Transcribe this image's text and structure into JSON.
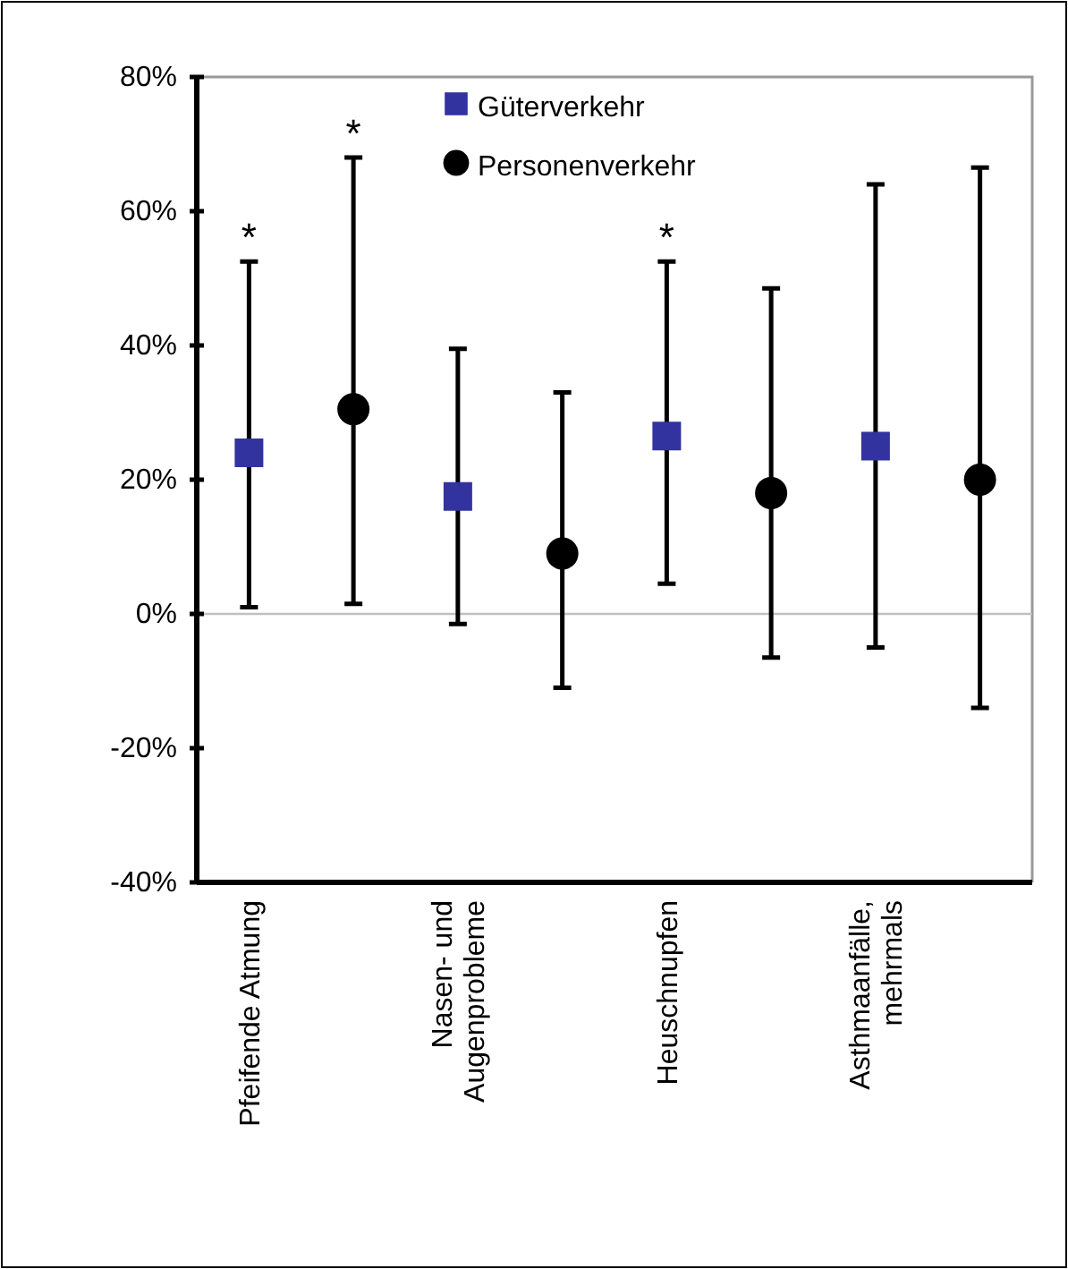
{
  "chart_data": {
    "type": "scatter",
    "categories": [
      "Pfeifende Atmung",
      null,
      "Nasen- und Augenprobleme",
      null,
      "Heuschnupfen",
      null,
      "Asthmaanfälle, mehrmals",
      null
    ],
    "series": [
      {
        "name": "Güterverkehr",
        "color": "#3333a0",
        "marker": "square",
        "values": [
          24,
          null,
          17.5,
          null,
          26.5,
          null,
          25,
          null
        ],
        "errors": [
          [
            1,
            52.5
          ],
          null,
          [
            -1.5,
            39.5
          ],
          null,
          [
            4.5,
            52.5
          ],
          null,
          [
            -5,
            64
          ],
          null
        ]
      },
      {
        "name": "Personenverkehr",
        "color": "#000000",
        "marker": "circle",
        "values": [
          null,
          30.5,
          null,
          9,
          null,
          18,
          null,
          20
        ],
        "errors": [
          null,
          [
            1.5,
            68
          ],
          null,
          [
            -11,
            33
          ],
          null,
          [
            -6.5,
            48.5
          ],
          null,
          [
            -14,
            66.5
          ]
        ]
      }
    ],
    "ylim": [
      -40,
      80
    ],
    "yticks": [
      {
        "value": -40,
        "label": "-40%"
      },
      {
        "value": -20,
        "label": "-20%"
      },
      {
        "value": 0,
        "label": "0%"
      },
      {
        "value": 20,
        "label": "20%"
      },
      {
        "value": 40,
        "label": "40%"
      },
      {
        "value": 60,
        "label": "60%"
      },
      {
        "value": 80,
        "label": "80%"
      }
    ],
    "ref_lines": [
      {
        "axis": "y",
        "value": 0,
        "color": "#c0c0c0"
      }
    ],
    "annotations": [
      {
        "text": "*",
        "x": "Pfeifende Atmung",
        "y": 52.5
      },
      {
        "text": "*",
        "y": 68
      },
      {
        "text": "*",
        "x": "Heuschnupfen",
        "y": 52.5
      }
    ],
    "legend": "top"
  }
}
